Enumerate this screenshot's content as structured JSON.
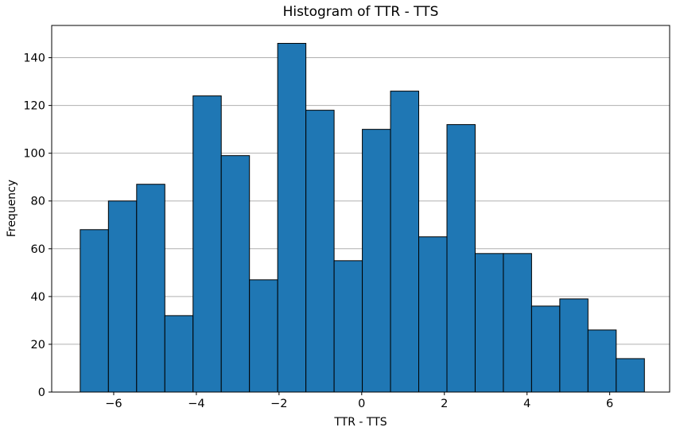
{
  "chart_data": {
    "type": "bar",
    "subtype": "histogram",
    "title": "Histogram of TTR - TTS",
    "xlabel": "TTR - TTS",
    "ylabel": "Frequency",
    "values": [
      68,
      80,
      87,
      32,
      124,
      99,
      47,
      146,
      118,
      55,
      110,
      126,
      65,
      112,
      58,
      58,
      36,
      39,
      26,
      14
    ],
    "bin_start": -6.81,
    "bin_width": 0.6825,
    "xticks": [
      -6,
      -4,
      -2,
      0,
      2,
      4,
      6
    ],
    "yticks": [
      0,
      20,
      40,
      60,
      80,
      100,
      120,
      140
    ],
    "xlim": [
      -7.5,
      7.45
    ],
    "ylim": [
      0,
      153.5
    ],
    "grid": "y",
    "legend": "none",
    "colors": {
      "bar_fill": "#1f77b4",
      "bar_edge": "#000000",
      "grid": "#b0b0b0",
      "axis": "#000000",
      "text": "#000000",
      "background": "#ffffff"
    }
  }
}
